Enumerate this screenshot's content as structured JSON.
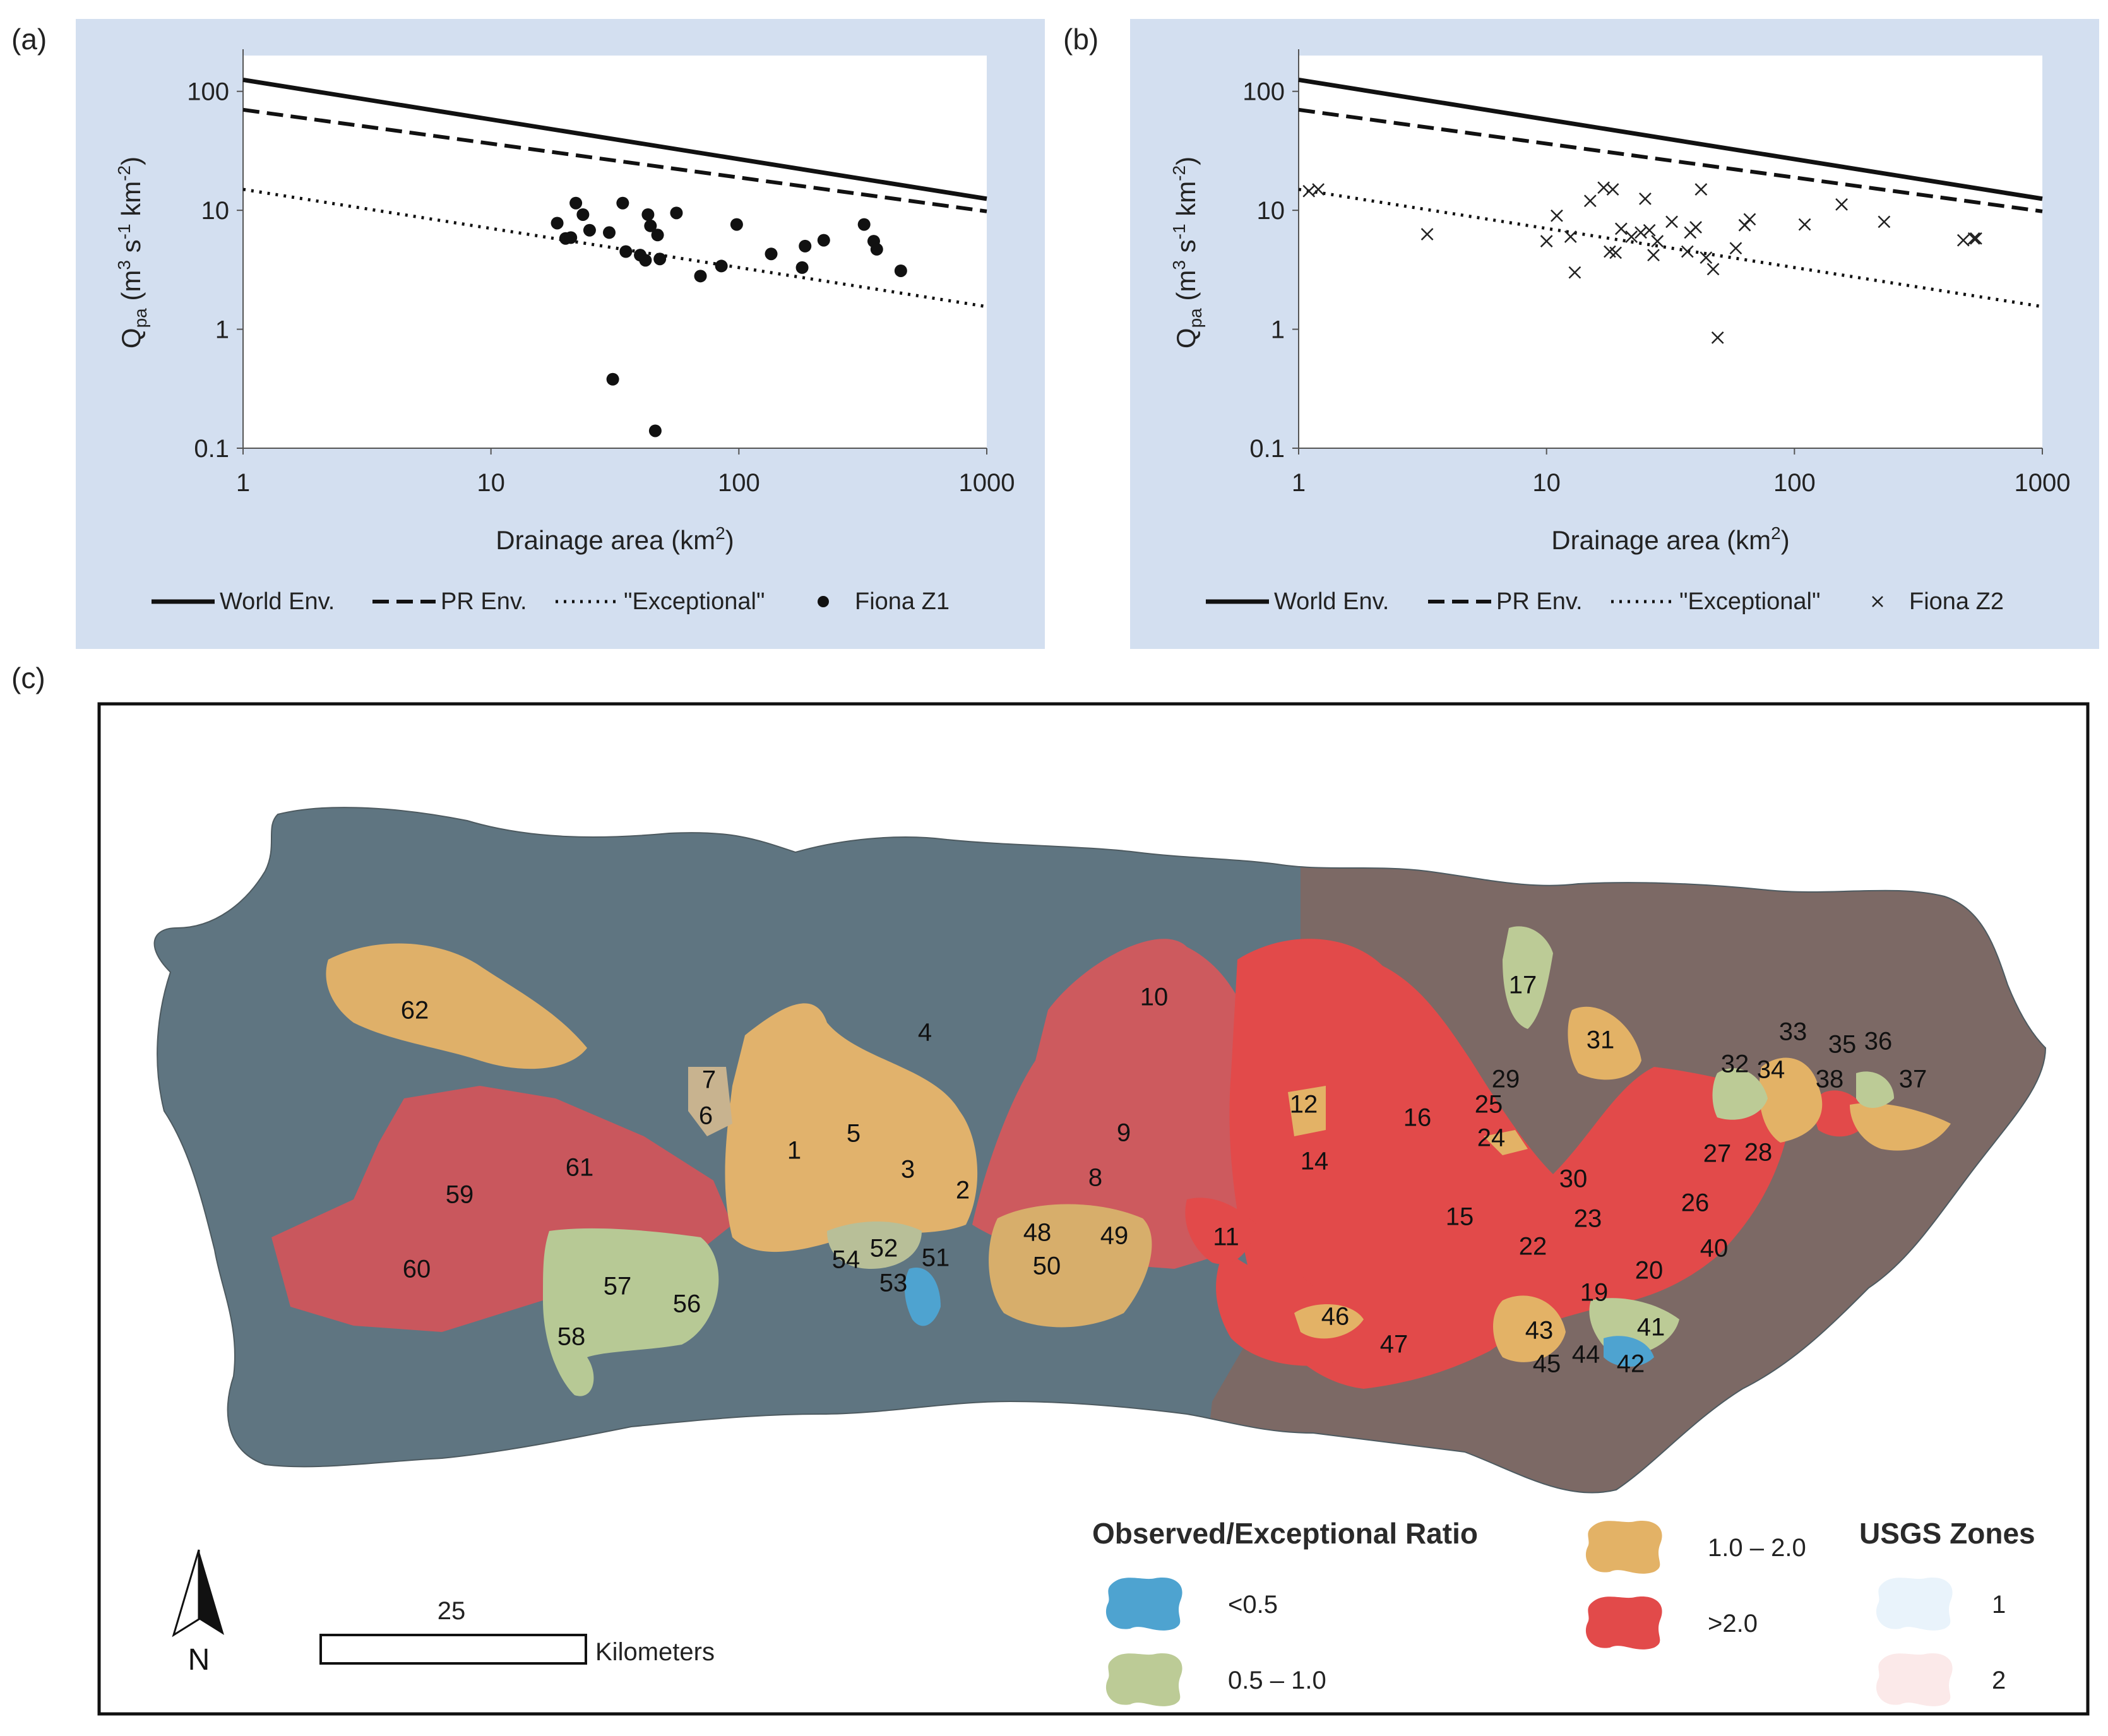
{
  "panels": {
    "a": "(a)",
    "b": "(b)",
    "c": "(c)"
  },
  "colors": {
    "panel_bg": "#d3dff0",
    "zone1": "#5f7581",
    "zone2": "#7c6965",
    "ratio_lt05": "#4ea3d0",
    "ratio_05_10": "#bccb96",
    "ratio_10_20": "#e3b266",
    "ratio_gt20": "#e44d4d"
  },
  "chart_data": [
    {
      "type": "scatter",
      "panel": "(a)",
      "x_scale": "log",
      "y_scale": "log",
      "xlim": [
        1,
        1000
      ],
      "ylim": [
        0.1,
        200
      ],
      "xlabel_main": "Drainage area (km",
      "xlabel_sup": "2",
      "xlabel_end": ")",
      "ylabel": "Q_pa (m^3 s^-1 km^-2)",
      "x_ticks": [
        "1",
        "10",
        "100",
        "1000"
      ],
      "y_ticks": [
        "0.1",
        "1",
        "10",
        "100"
      ],
      "envelopes": [
        {
          "name": "World Env.",
          "style": "solid",
          "x": [
            1,
            1000
          ],
          "y": [
            125,
            12.5
          ]
        },
        {
          "name": "PR Env.",
          "style": "dashed",
          "x": [
            1,
            1000
          ],
          "y": [
            70,
            9.8
          ]
        },
        {
          "name": "\"Exceptional\"",
          "style": "dotted",
          "x": [
            1,
            1000
          ],
          "y": [
            15,
            1.55
          ]
        }
      ],
      "series": [
        {
          "name": "Fiona Z1",
          "marker": "circle",
          "points": [
            [
              18.5,
              7.8
            ],
            [
              20,
              5.8
            ],
            [
              21,
              5.9
            ],
            [
              22,
              11.5
            ],
            [
              23.5,
              9.2
            ],
            [
              25,
              6.8
            ],
            [
              30,
              6.5
            ],
            [
              31,
              0.38
            ],
            [
              34,
              11.5
            ],
            [
              35,
              4.5
            ],
            [
              40,
              4.2
            ],
            [
              42,
              3.8
            ],
            [
              43,
              9.2
            ],
            [
              44,
              7.4
            ],
            [
              46,
              0.14
            ],
            [
              47,
              6.2
            ],
            [
              48,
              3.9
            ],
            [
              56,
              9.5
            ],
            [
              70,
              2.8
            ],
            [
              85,
              3.4
            ],
            [
              98,
              7.6
            ],
            [
              135,
              4.3
            ],
            [
              180,
              3.3
            ],
            [
              185,
              5.0
            ],
            [
              220,
              5.6
            ],
            [
              320,
              7.6
            ],
            [
              350,
              5.5
            ],
            [
              360,
              4.7
            ],
            [
              450,
              3.1
            ]
          ]
        }
      ],
      "legend": [
        "World Env.",
        "PR Env.",
        "\"Exceptional\"",
        "Fiona Z1"
      ]
    },
    {
      "type": "scatter",
      "panel": "(b)",
      "x_scale": "log",
      "y_scale": "log",
      "xlim": [
        1,
        1000
      ],
      "ylim": [
        0.1,
        200
      ],
      "xlabel_main": "Drainage area (km",
      "xlabel_sup": "2",
      "xlabel_end": ")",
      "ylabel": "Q_pa (m^3 s^-1 km^-2)",
      "x_ticks": [
        "1",
        "10",
        "100",
        "1000"
      ],
      "y_ticks": [
        "0.1",
        "1",
        "10",
        "100"
      ],
      "envelopes": [
        {
          "name": "World Env.",
          "style": "solid",
          "x": [
            1,
            1000
          ],
          "y": [
            125,
            12.5
          ]
        },
        {
          "name": "PR Env.",
          "style": "dashed",
          "x": [
            1,
            1000
          ],
          "y": [
            70,
            9.8
          ]
        },
        {
          "name": "\"Exceptional\"",
          "style": "dotted",
          "x": [
            1,
            1000
          ],
          "y": [
            15,
            1.55
          ]
        }
      ],
      "series": [
        {
          "name": "Fiona Z2",
          "marker": "x",
          "points": [
            [
              1.1,
              14.5
            ],
            [
              1.2,
              15.0
            ],
            [
              3.3,
              6.3
            ],
            [
              10,
              5.5
            ],
            [
              11,
              9.0
            ],
            [
              12.5,
              6.0
            ],
            [
              13,
              3.0
            ],
            [
              15,
              12.0
            ],
            [
              17,
              15.5
            ],
            [
              18,
              4.5
            ],
            [
              18.5,
              15.0
            ],
            [
              19,
              4.4
            ],
            [
              20,
              7.0
            ],
            [
              22,
              6.0
            ],
            [
              24,
              6.5
            ],
            [
              25,
              12.5
            ],
            [
              26,
              6.8
            ],
            [
              27,
              4.2
            ],
            [
              28,
              5.5
            ],
            [
              32,
              8.0
            ],
            [
              37,
              4.5
            ],
            [
              38,
              6.5
            ],
            [
              40,
              7.2
            ],
            [
              42,
              15.0
            ],
            [
              44,
              4.0
            ],
            [
              47,
              3.2
            ],
            [
              49,
              0.85
            ],
            [
              58,
              4.8
            ],
            [
              63,
              7.5
            ],
            [
              66,
              8.4
            ],
            [
              110,
              7.6
            ],
            [
              155,
              11.2
            ],
            [
              230,
              8.0
            ],
            [
              480,
              5.6
            ],
            [
              530,
              5.8
            ],
            [
              540,
              5.8
            ]
          ]
        }
      ],
      "legend": [
        "World Env.",
        "PR Env.",
        "\"Exceptional\"",
        "Fiona Z2"
      ]
    }
  ],
  "map": {
    "legend_ratio_title": "Observed/Exceptional Ratio",
    "legend_ratio_items": [
      "<0.5",
      "0.5 – 1.0",
      "1.0 – 2.0",
      ">2.0"
    ],
    "legend_zones_title": "USGS Zones",
    "legend_zones_items": [
      "1",
      "2"
    ],
    "scale_value": "25",
    "scale_unit": "Kilometers",
    "north": "N",
    "basins": [
      {
        "id": "1",
        "cls": "ratio_10_20"
      },
      {
        "id": "2",
        "cls": "ratio_10_20"
      },
      {
        "id": "3",
        "cls": "ratio_10_20"
      },
      {
        "id": "4",
        "cls": "ratio_10_20"
      },
      {
        "id": "5",
        "cls": "ratio_10_20"
      },
      {
        "id": "6",
        "cls": "ratio_10_20"
      },
      {
        "id": "7",
        "cls": "ratio_10_20"
      },
      {
        "id": "8",
        "cls": "ratio_gt20"
      },
      {
        "id": "9",
        "cls": "ratio_gt20"
      },
      {
        "id": "10",
        "cls": "ratio_gt20"
      },
      {
        "id": "11",
        "cls": "ratio_gt20"
      },
      {
        "id": "12",
        "cls": "ratio_10_20"
      },
      {
        "id": "14",
        "cls": "ratio_gt20"
      },
      {
        "id": "15",
        "cls": "ratio_gt20"
      },
      {
        "id": "16",
        "cls": "ratio_gt20"
      },
      {
        "id": "17",
        "cls": "ratio_05_10"
      },
      {
        "id": "19",
        "cls": "ratio_gt20"
      },
      {
        "id": "20",
        "cls": "ratio_gt20"
      },
      {
        "id": "22",
        "cls": "ratio_gt20"
      },
      {
        "id": "23",
        "cls": "ratio_gt20"
      },
      {
        "id": "24",
        "cls": "ratio_gt20"
      },
      {
        "id": "25",
        "cls": "ratio_10_20"
      },
      {
        "id": "26",
        "cls": "ratio_gt20"
      },
      {
        "id": "27",
        "cls": "ratio_gt20"
      },
      {
        "id": "28",
        "cls": "ratio_gt20"
      },
      {
        "id": "29",
        "cls": "ratio_10_20"
      },
      {
        "id": "30",
        "cls": "ratio_gt20"
      },
      {
        "id": "31",
        "cls": "ratio_10_20"
      },
      {
        "id": "32",
        "cls": "ratio_05_10"
      },
      {
        "id": "33",
        "cls": "ratio_10_20"
      },
      {
        "id": "34",
        "cls": "ratio_10_20"
      },
      {
        "id": "35",
        "cls": "ratio_gt20"
      },
      {
        "id": "36",
        "cls": "ratio_05_10"
      },
      {
        "id": "37",
        "cls": "ratio_10_20"
      },
      {
        "id": "38",
        "cls": "ratio_10_20"
      },
      {
        "id": "40",
        "cls": "ratio_gt20"
      },
      {
        "id": "41",
        "cls": "ratio_05_10"
      },
      {
        "id": "42",
        "cls": "ratio_lt05"
      },
      {
        "id": "43",
        "cls": "ratio_10_20"
      },
      {
        "id": "44",
        "cls": "ratio_gt20"
      },
      {
        "id": "45",
        "cls": "ratio_gt20"
      },
      {
        "id": "46",
        "cls": "ratio_10_20"
      },
      {
        "id": "47",
        "cls": "ratio_gt20"
      },
      {
        "id": "48",
        "cls": "ratio_10_20"
      },
      {
        "id": "49",
        "cls": "ratio_10_20"
      },
      {
        "id": "50",
        "cls": "ratio_10_20"
      },
      {
        "id": "51",
        "cls": "ratio_10_20"
      },
      {
        "id": "52",
        "cls": "ratio_05_10"
      },
      {
        "id": "53",
        "cls": "ratio_lt05"
      },
      {
        "id": "54",
        "cls": "ratio_05_10"
      },
      {
        "id": "56",
        "cls": "ratio_05_10"
      },
      {
        "id": "57",
        "cls": "ratio_05_10"
      },
      {
        "id": "58",
        "cls": "ratio_05_10"
      },
      {
        "id": "59",
        "cls": "ratio_gt20"
      },
      {
        "id": "60",
        "cls": "ratio_gt20"
      },
      {
        "id": "61",
        "cls": "ratio_gt20"
      },
      {
        "id": "62",
        "cls": "ratio_10_20"
      }
    ]
  }
}
